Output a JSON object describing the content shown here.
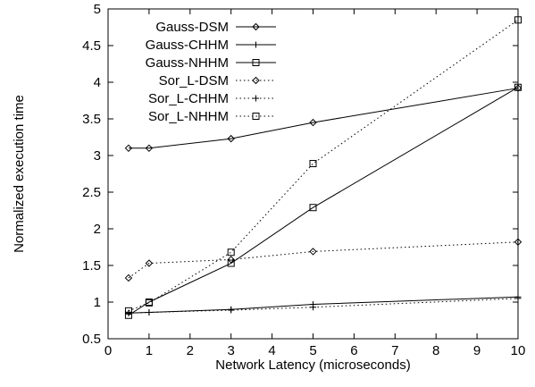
{
  "chart_data": {
    "type": "line",
    "xlabel": "Network Latency (microseconds)",
    "ylabel": "Normalized execution time",
    "xlim": [
      0,
      10
    ],
    "ylim": [
      0.5,
      5
    ],
    "xticks": [
      0,
      1,
      2,
      3,
      4,
      5,
      6,
      7,
      8,
      9,
      10
    ],
    "yticks": [
      0.5,
      1,
      1.5,
      2,
      2.5,
      3,
      3.5,
      4,
      4.5,
      5
    ],
    "xtick_labels": [
      "0",
      "1",
      "2",
      "3",
      "4",
      "5",
      "6",
      "7",
      "8",
      "9",
      "10"
    ],
    "ytick_labels": [
      "0.5",
      "1",
      "1.5",
      "2",
      "2.5",
      "3",
      "3.5",
      "4",
      "4.5",
      "5"
    ],
    "grid": false,
    "legend_position": "top-left",
    "x": [
      0.5,
      1,
      3,
      5,
      10
    ],
    "series": [
      {
        "name": "Gauss-DSM",
        "values": [
          3.1,
          3.1,
          3.23,
          3.45,
          3.92
        ],
        "marker": "diamond",
        "line": "solid"
      },
      {
        "name": "Gauss-CHHM",
        "values": [
          0.85,
          0.86,
          0.9,
          0.97,
          1.07
        ],
        "marker": "plus",
        "line": "solid"
      },
      {
        "name": "Gauss-NHHM",
        "values": [
          0.82,
          1.0,
          1.53,
          2.29,
          3.93
        ],
        "marker": "square",
        "line": "solid"
      },
      {
        "name": "Sor_L-DSM",
        "values": [
          1.33,
          1.53,
          1.58,
          1.69,
          1.82
        ],
        "marker": "diamond",
        "line": "dotted"
      },
      {
        "name": "Sor_L-CHHM",
        "values": [
          0.85,
          0.86,
          0.89,
          0.93,
          1.05
        ],
        "marker": "plus",
        "line": "dotted"
      },
      {
        "name": "Sor_L-NHHM",
        "values": [
          0.88,
          0.99,
          1.68,
          2.89,
          4.85
        ],
        "marker": "square",
        "line": "dotted"
      }
    ]
  }
}
